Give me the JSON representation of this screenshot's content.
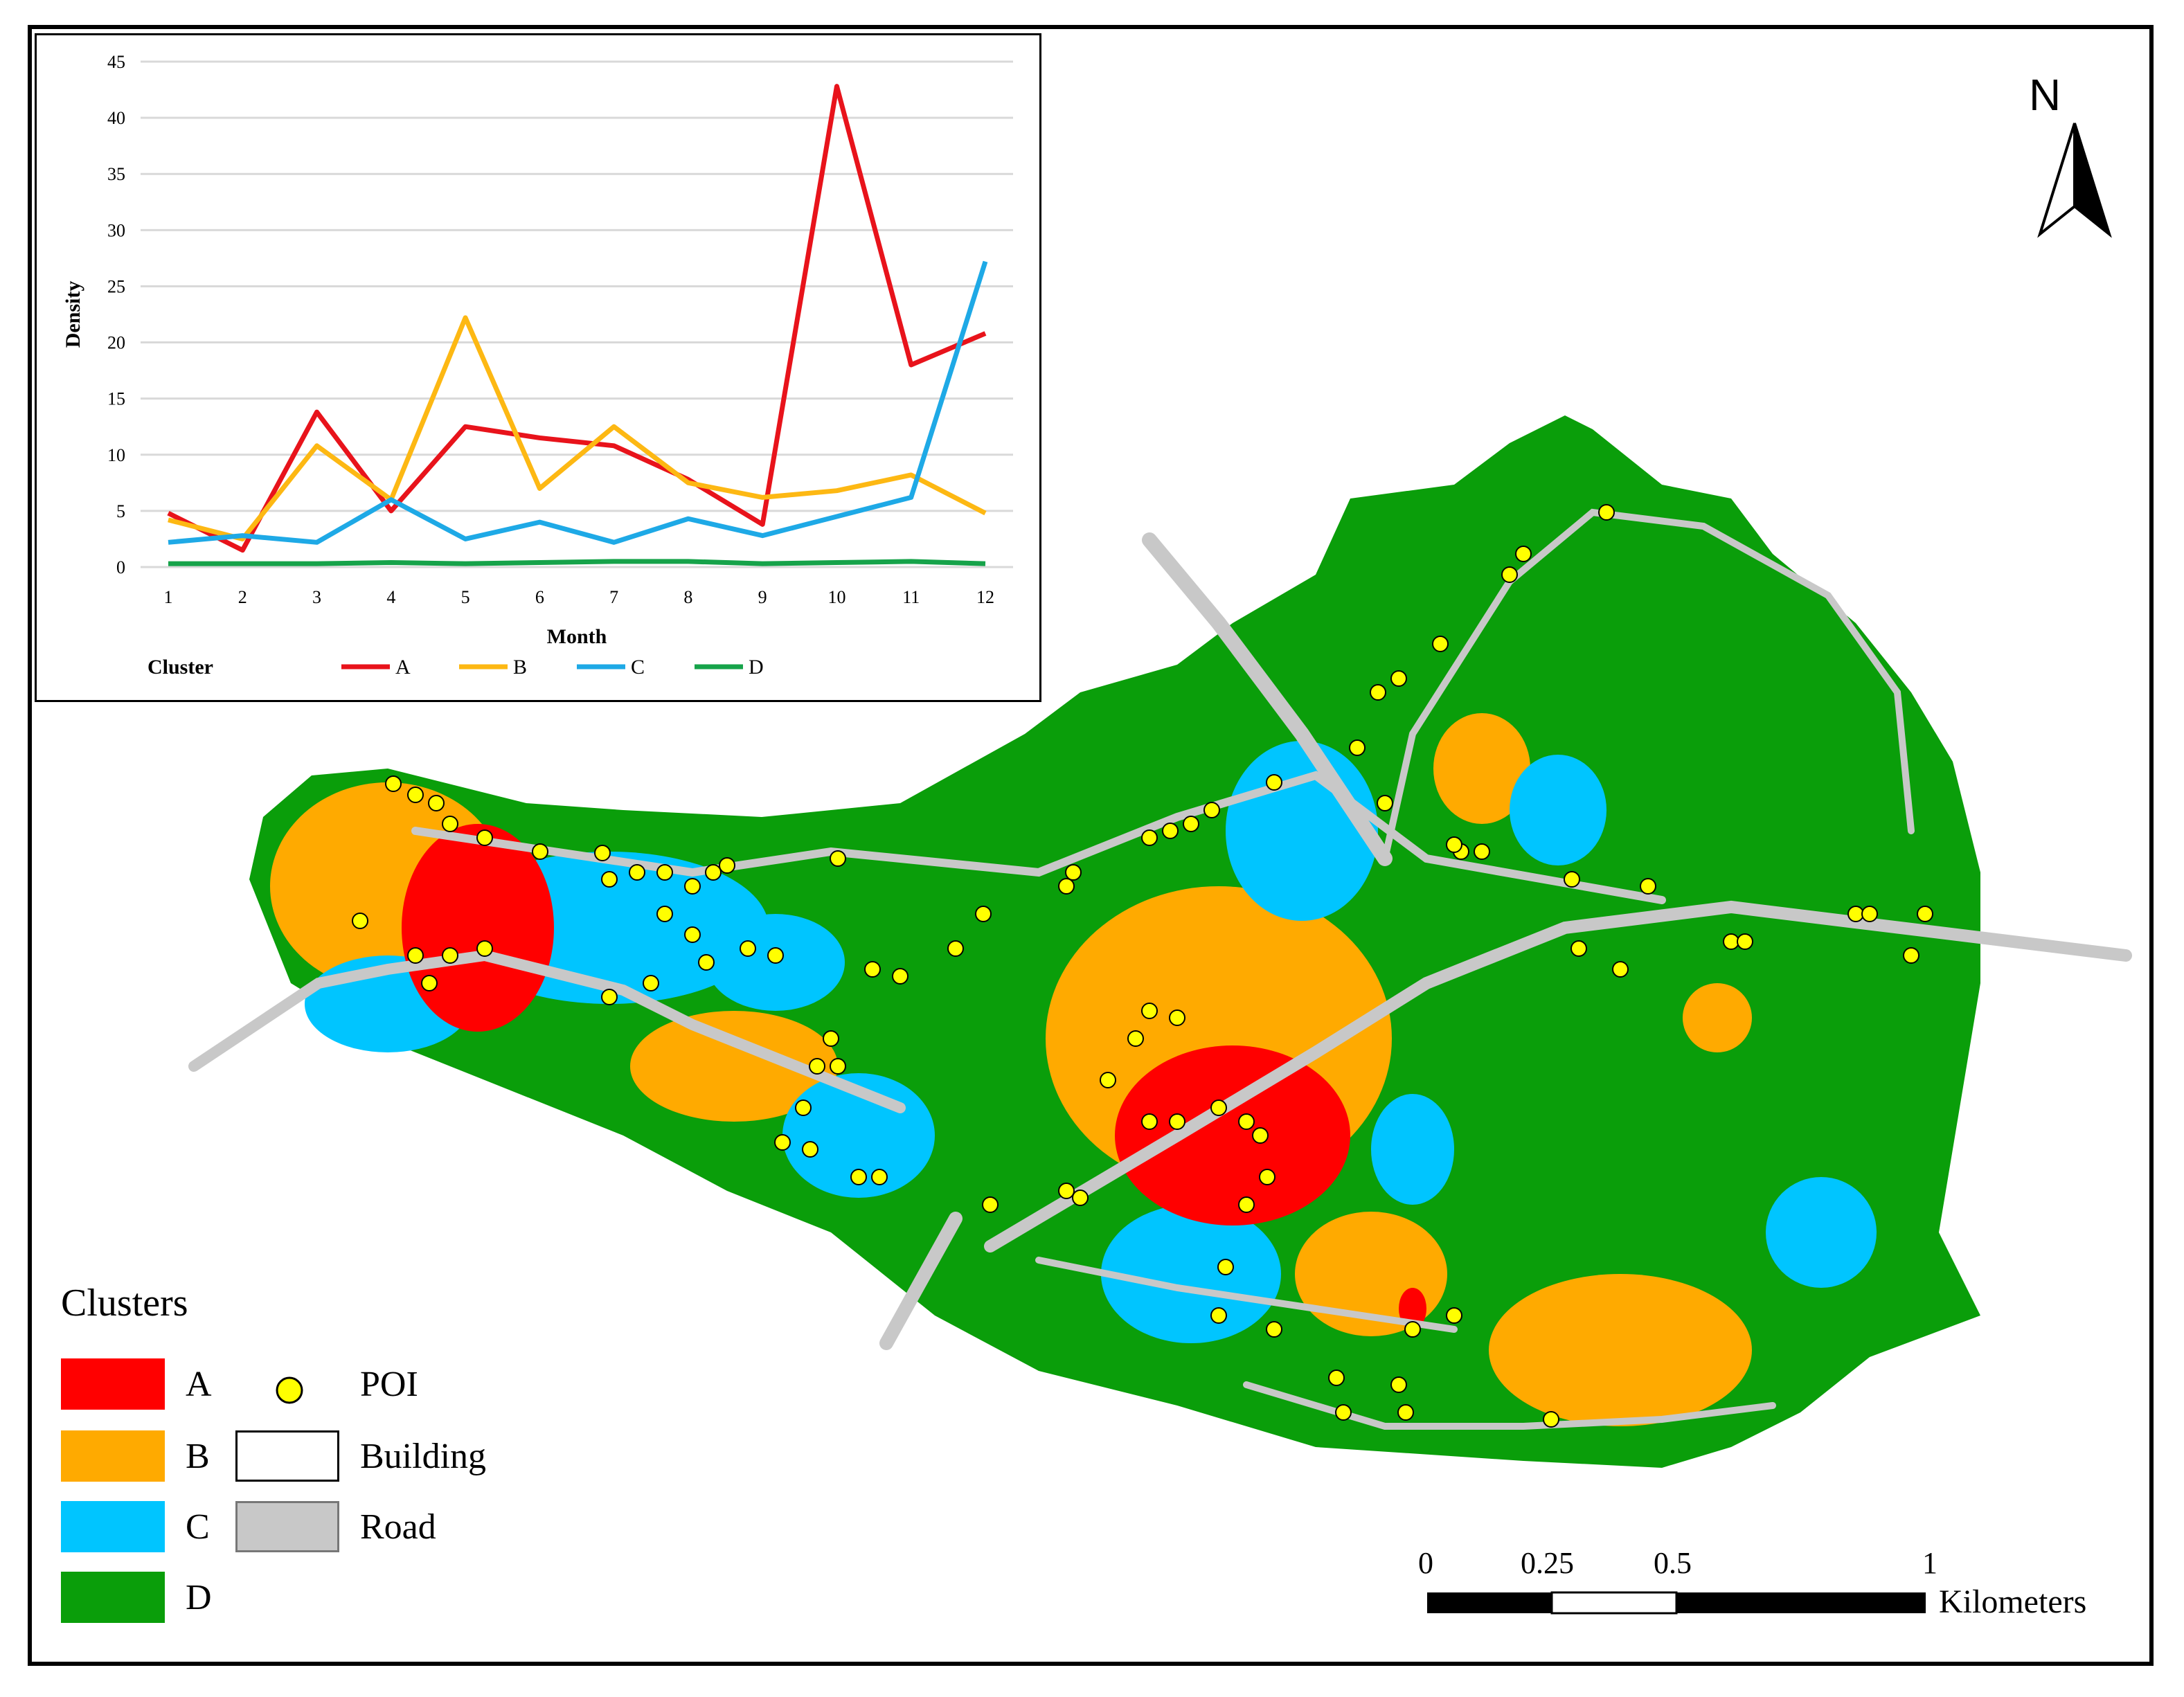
{
  "chart_data": {
    "type": "line",
    "title": "",
    "xlabel": "Month",
    "ylabel": "Density",
    "legend_title": "Cluster",
    "legend_position": "bottom",
    "grid": true,
    "x": [
      1,
      2,
      3,
      4,
      5,
      6,
      7,
      8,
      9,
      10,
      11,
      12
    ],
    "ylim": [
      0,
      45
    ],
    "yticks": [
      0,
      5,
      10,
      15,
      20,
      25,
      30,
      35,
      40,
      45
    ],
    "series": [
      {
        "name": "A",
        "color": "#e8131b",
        "values": [
          4.8,
          1.5,
          13.8,
          5.0,
          12.5,
          11.5,
          10.8,
          7.8,
          3.8,
          42.8,
          18.0,
          20.8
        ]
      },
      {
        "name": "B",
        "color": "#fdb813",
        "values": [
          4.2,
          2.5,
          10.8,
          6.0,
          22.2,
          7.0,
          12.5,
          7.5,
          6.2,
          6.8,
          8.2,
          4.8
        ]
      },
      {
        "name": "C",
        "color": "#1ea9e6",
        "values": [
          2.2,
          2.8,
          2.2,
          6.0,
          2.5,
          4.0,
          2.2,
          4.3,
          2.8,
          4.5,
          6.2,
          27.2
        ]
      },
      {
        "name": "D",
        "color": "#16a34a",
        "values": [
          0.3,
          0.3,
          0.3,
          0.4,
          0.3,
          0.4,
          0.5,
          0.5,
          0.3,
          0.4,
          0.5,
          0.3
        ]
      }
    ]
  },
  "map": {
    "north_label": "N",
    "legend": {
      "title": "Clusters",
      "items": [
        {
          "key": "cluster-a",
          "label": "A",
          "color": "#ff0000"
        },
        {
          "key": "cluster-b",
          "label": "B",
          "color": "#ffaa00"
        },
        {
          "key": "cluster-c",
          "label": "C",
          "color": "#00c5ff"
        },
        {
          "key": "cluster-d",
          "label": "D",
          "color": "#0a9e0a"
        },
        {
          "key": "poi",
          "label": "POI",
          "color": "#ffff00"
        },
        {
          "key": "building",
          "label": "Building",
          "color": "#ffffff"
        },
        {
          "key": "road",
          "label": "Road",
          "color": "#c8c8c8"
        }
      ]
    },
    "scale_bar": {
      "ticks": [
        "0",
        "0.25",
        "0.5",
        "1"
      ],
      "unit": "Kilometers"
    }
  }
}
